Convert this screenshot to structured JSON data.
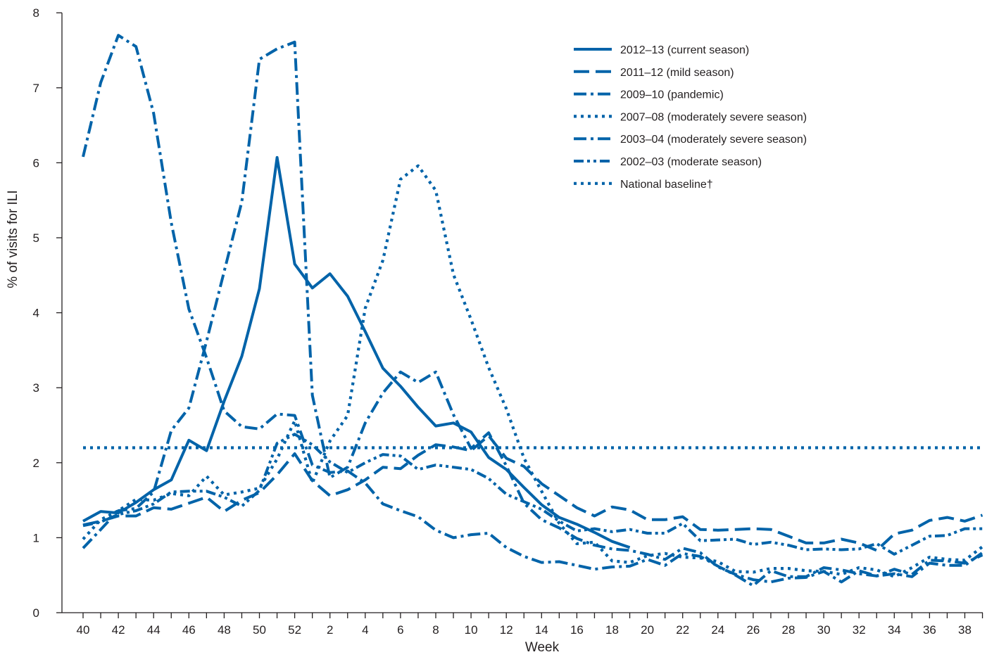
{
  "chart_data": {
    "type": "line",
    "xlabel": "Week",
    "ylabel": "% of visits for ILI",
    "ylim": [
      0,
      8
    ],
    "yticks": [
      "0",
      "1",
      "2",
      "3",
      "4",
      "5",
      "6",
      "7",
      "8"
    ],
    "x_labels": [
      "40",
      "41",
      "42",
      "43",
      "44",
      "45",
      "46",
      "47",
      "48",
      "49",
      "50",
      "51",
      "52",
      "1",
      "2",
      "3",
      "4",
      "5",
      "6",
      "7",
      "8",
      "9",
      "10",
      "11",
      "12",
      "13",
      "14",
      "15",
      "16",
      "17",
      "18",
      "19",
      "20",
      "21",
      "22",
      "23",
      "24",
      "25",
      "26",
      "27",
      "28",
      "29",
      "30",
      "31",
      "32",
      "33",
      "34",
      "35",
      "36",
      "37",
      "38",
      "39"
    ],
    "x_tick_labels": [
      "40",
      "42",
      "44",
      "46",
      "48",
      "50",
      "52",
      "2",
      "4",
      "6",
      "8",
      "10",
      "12",
      "14",
      "16",
      "18",
      "20",
      "22",
      "24",
      "26",
      "28",
      "30",
      "32",
      "34",
      "36",
      "38"
    ],
    "legend_position": "top-right",
    "color": "#0063a9",
    "series": [
      {
        "name": "2012–13 (current season)",
        "style": "solid",
        "values": [
          1.22,
          1.35,
          1.33,
          1.47,
          1.64,
          1.77,
          2.3,
          2.16,
          2.82,
          3.42,
          4.32,
          6.07,
          4.65,
          4.33,
          4.52,
          4.22,
          3.75,
          3.26,
          3.02,
          2.74,
          2.49,
          2.53,
          2.41,
          2.07,
          1.91,
          1.67,
          1.44,
          1.27,
          1.18,
          1.07,
          0.95,
          0.87
        ]
      },
      {
        "name": "2011–12 (mild season)",
        "style": "long-dash",
        "values": [
          1.17,
          1.22,
          1.29,
          1.29,
          1.4,
          1.38,
          1.46,
          1.54,
          1.35,
          1.5,
          1.6,
          1.84,
          2.12,
          1.76,
          1.56,
          1.64,
          1.77,
          1.94,
          1.92,
          2.1,
          2.24,
          2.21,
          2.16,
          2.36,
          2.06,
          1.95,
          1.72,
          1.56,
          1.4,
          1.29,
          1.41,
          1.37,
          1.24,
          1.24,
          1.28,
          1.11,
          1.1,
          1.11,
          1.12,
          1.11,
          1.02,
          0.93,
          0.93,
          0.98,
          0.93,
          0.83,
          1.05,
          1.1,
          1.23,
          1.27,
          1.22,
          1.3
        ]
      },
      {
        "name": "2009–10 (pandemic)",
        "style": "dash-dot",
        "values": [
          6.08,
          7.07,
          7.7,
          7.55,
          6.66,
          5.2,
          4.05,
          3.4,
          2.69,
          2.48,
          2.45,
          2.65,
          2.63,
          1.97,
          1.87,
          1.89,
          1.73,
          1.45,
          1.36,
          1.28,
          1.1,
          1.0,
          1.04,
          1.06,
          0.87,
          0.75,
          0.67,
          0.68,
          0.63,
          0.58,
          0.61,
          0.62,
          0.71,
          0.63,
          0.79,
          0.75,
          0.62,
          0.5,
          0.36,
          0.56,
          0.48,
          0.48,
          0.6,
          0.57,
          0.52,
          0.49,
          0.58,
          0.51,
          0.7,
          0.69,
          0.66,
          0.77
        ]
      },
      {
        "name": "2007–08 (moderately severe season)",
        "style": "dotted",
        "values": [
          0.98,
          1.24,
          1.36,
          1.51,
          1.5,
          1.59,
          1.56,
          1.82,
          1.57,
          1.61,
          1.66,
          2.05,
          2.56,
          1.73,
          2.29,
          2.63,
          4.06,
          4.7,
          5.78,
          5.96,
          5.63,
          4.51,
          3.91,
          3.27,
          2.72,
          2.06,
          1.62,
          1.19,
          0.92,
          0.94,
          0.69,
          0.67,
          0.76,
          0.79,
          0.74,
          0.73,
          0.68,
          0.55,
          0.54,
          0.59,
          0.59,
          0.56,
          0.55,
          0.51,
          0.6,
          0.57,
          0.48,
          0.6,
          0.74,
          0.71,
          0.7,
          0.88
        ]
      },
      {
        "name": "2003–04 (moderately severe season)",
        "style": "dash-dot",
        "values": [
          0.86,
          1.11,
          1.36,
          1.39,
          1.61,
          2.43,
          2.73,
          3.62,
          4.55,
          5.48,
          7.38,
          7.52,
          7.61,
          2.9,
          1.8,
          1.94,
          2.53,
          2.93,
          3.21,
          3.07,
          3.21,
          2.64,
          2.19,
          2.4,
          1.96,
          1.46,
          1.24,
          1.13,
          0.99,
          0.9,
          0.85,
          0.83,
          0.78,
          0.71,
          0.86,
          0.8,
          0.61,
          0.51,
          0.44,
          0.41,
          0.46,
          0.47,
          0.55,
          0.41,
          0.56,
          0.49,
          0.52,
          0.48,
          0.66,
          0.63,
          0.63,
          0.8
        ]
      },
      {
        "name": "2002–03 (moderate season)",
        "style": "dash-dot-dot",
        "values": [
          1.16,
          1.21,
          1.31,
          1.36,
          1.45,
          1.61,
          1.62,
          1.62,
          1.54,
          1.42,
          1.63,
          2.26,
          2.38,
          2.24,
          2.01,
          1.87,
          2.0,
          2.11,
          2.09,
          1.91,
          1.97,
          1.94,
          1.91,
          1.79,
          1.58,
          1.48,
          1.38,
          1.22,
          1.09,
          1.12,
          1.08,
          1.11,
          1.06,
          1.06,
          1.19,
          0.96,
          0.97,
          0.98,
          0.91,
          0.94,
          0.9,
          0.84,
          0.85,
          0.84,
          0.85,
          0.92,
          0.78,
          0.9,
          1.02,
          1.03,
          1.12,
          1.12
        ]
      },
      {
        "name": "National baseline†",
        "style": "dotted",
        "values": [
          2.2,
          2.2,
          2.2,
          2.2,
          2.2,
          2.2,
          2.2,
          2.2,
          2.2,
          2.2,
          2.2,
          2.2,
          2.2,
          2.2,
          2.2,
          2.2,
          2.2,
          2.2,
          2.2,
          2.2,
          2.2,
          2.2,
          2.2,
          2.2,
          2.2,
          2.2,
          2.2,
          2.2,
          2.2,
          2.2,
          2.2,
          2.2,
          2.2,
          2.2,
          2.2,
          2.2,
          2.2,
          2.2,
          2.2,
          2.2,
          2.2,
          2.2,
          2.2,
          2.2,
          2.2,
          2.2,
          2.2,
          2.2,
          2.2,
          2.2,
          2.2,
          2.2
        ]
      }
    ]
  }
}
